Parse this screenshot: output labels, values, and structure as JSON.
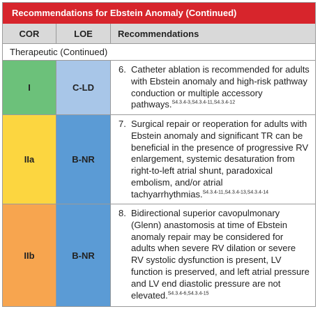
{
  "table": {
    "title": "Recommendations for Ebstein Anomaly (Continued)",
    "headers": {
      "cor": "COR",
      "loe": "LOE",
      "recommendations": "Recommendations"
    },
    "section": "Therapeutic (Continued)",
    "colors": {
      "title_bar": "#d7252c",
      "header_bg": "#d9d9d9",
      "cor_I": "#6cc17a",
      "cor_IIa": "#fcd640",
      "cor_IIb": "#f7a54f",
      "loe_C-LD": "#a8c6e8",
      "loe_B-NR": "#5b9bd5"
    },
    "rows": [
      {
        "cor": "I",
        "loe": "C-LD",
        "number": "6.",
        "text": "Catheter ablation is recommended for adults with Ebstein anomaly and high-risk pathway conduction or multiple accessory pathways.",
        "refs": "S4.3.4-3,S4.3.4-11,S4.3.4-12"
      },
      {
        "cor": "IIa",
        "loe": "B-NR",
        "number": "7.",
        "text": "Surgical repair or reoperation for adults with Ebstein anomaly and significant TR can be beneficial in the presence of progressive RV enlargement, systemic desaturation from right-to-left atrial shunt, paradoxical embolism, and/or atrial tachyarrhythmias.",
        "refs": "S4.3.4-11,S4.3.4-13,S4.3.4-14"
      },
      {
        "cor": "IIb",
        "loe": "B-NR",
        "number": "8.",
        "text": "Bidirectional superior cavopulmonary (Glenn) anastomosis at time of Ebstein anomaly repair may be considered for adults when severe RV dilation or severe RV systolic dysfunction is present, LV function is preserved, and left atrial pressure and LV end diastolic pressure are not elevated.",
        "refs": "S4.3.4-6,S4.3.4-15"
      }
    ]
  }
}
